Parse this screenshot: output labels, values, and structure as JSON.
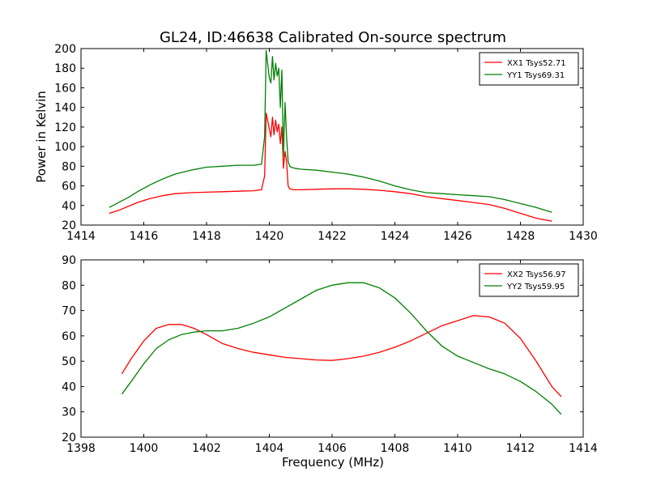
{
  "figure": {
    "title": "GL24, ID:46638 Calibrated On-source spectrum",
    "xlabel": "Frequency (MHz)"
  },
  "colors": {
    "red": "#ff0000",
    "green": "#008000",
    "frame": "#000000",
    "background": "#ffffff"
  },
  "chart_data": [
    {
      "type": "line",
      "title": "GL24, ID:46638 Calibrated On-source spectrum",
      "xlabel": "",
      "ylabel": "Power in Kelvin",
      "xlim": [
        1414,
        1430
      ],
      "ylim": [
        20,
        200
      ],
      "xticks": [
        1414,
        1416,
        1418,
        1420,
        1422,
        1424,
        1426,
        1428,
        1430
      ],
      "yticks": [
        20,
        40,
        60,
        80,
        100,
        120,
        140,
        160,
        180,
        200
      ],
      "grid": false,
      "legend_position": "top-right",
      "series": [
        {
          "name": "XX1 Tsys52.71",
          "color": "#ff0000",
          "x": [
            1414.9,
            1415.2,
            1415.5,
            1415.8,
            1416.2,
            1416.6,
            1417.0,
            1417.5,
            1418.0,
            1418.5,
            1419.0,
            1419.5,
            1419.75,
            1419.85,
            1419.9,
            1420.0,
            1420.05,
            1420.1,
            1420.15,
            1420.2,
            1420.25,
            1420.3,
            1420.35,
            1420.4,
            1420.45,
            1420.5,
            1420.55,
            1420.6,
            1420.65,
            1420.7,
            1420.8,
            1421.0,
            1421.5,
            1422.0,
            1422.5,
            1423.0,
            1423.5,
            1424.0,
            1424.5,
            1425.0,
            1425.5,
            1426.0,
            1426.5,
            1427.0,
            1427.5,
            1428.0,
            1428.5,
            1429.0
          ],
          "y": [
            32,
            35,
            39,
            43,
            47,
            50,
            52,
            53,
            53.5,
            54,
            54.5,
            55,
            56,
            70,
            134,
            118,
            110,
            130,
            112,
            127,
            115,
            123,
            103,
            120,
            78,
            95,
            85,
            60,
            57,
            56.5,
            56,
            56,
            56.5,
            57,
            57,
            56.5,
            55.5,
            54,
            52,
            49,
            47,
            45,
            43,
            41,
            37,
            32,
            27,
            24
          ]
        },
        {
          "name": "YY1 Tsys69.31",
          "color": "#008000",
          "x": [
            1414.9,
            1415.2,
            1415.5,
            1415.8,
            1416.2,
            1416.6,
            1417.0,
            1417.5,
            1418.0,
            1418.5,
            1419.0,
            1419.5,
            1419.75,
            1419.85,
            1419.9,
            1420.0,
            1420.05,
            1420.1,
            1420.15,
            1420.2,
            1420.25,
            1420.3,
            1420.35,
            1420.4,
            1420.45,
            1420.5,
            1420.55,
            1420.6,
            1420.65,
            1420.7,
            1420.8,
            1421.0,
            1421.5,
            1422.0,
            1422.5,
            1423.0,
            1423.5,
            1424.0,
            1424.5,
            1425.0,
            1425.5,
            1426.0,
            1426.5,
            1427.0,
            1427.5,
            1428.0,
            1428.5,
            1429.0
          ],
          "y": [
            38,
            43,
            48,
            54,
            61,
            67,
            72,
            76,
            79,
            80,
            81,
            81,
            82,
            110,
            198,
            170,
            165,
            192,
            168,
            185,
            172,
            180,
            140,
            178,
            90,
            145,
            110,
            85,
            80,
            79,
            78,
            77,
            76,
            74,
            72,
            69,
            65,
            60,
            56,
            53,
            52,
            51,
            50,
            49,
            46,
            42,
            38,
            33
          ]
        }
      ]
    },
    {
      "type": "line",
      "title": "",
      "xlabel": "Frequency (MHz)",
      "ylabel": "",
      "xlim": [
        1398,
        1414
      ],
      "ylim": [
        20,
        90
      ],
      "xticks": [
        1398,
        1400,
        1402,
        1404,
        1406,
        1408,
        1410,
        1412,
        1414
      ],
      "yticks": [
        20,
        30,
        40,
        50,
        60,
        70,
        80,
        90
      ],
      "grid": false,
      "legend_position": "top-right",
      "series": [
        {
          "name": "XX2 Tsys56.97",
          "color": "#ff0000",
          "x": [
            1399.3,
            1399.6,
            1400.0,
            1400.4,
            1400.8,
            1401.2,
            1401.6,
            1402.0,
            1402.5,
            1403.0,
            1403.5,
            1404.0,
            1404.5,
            1405.0,
            1405.5,
            1406.0,
            1406.5,
            1407.0,
            1407.5,
            1408.0,
            1408.5,
            1409.0,
            1409.5,
            1410.0,
            1410.5,
            1411.0,
            1411.5,
            1412.0,
            1412.5,
            1413.0,
            1413.3
          ],
          "y": [
            45,
            51,
            58,
            63,
            64.5,
            64.5,
            63,
            60.5,
            57,
            55,
            53.5,
            52.5,
            51.5,
            51,
            50.5,
            50.3,
            51,
            52,
            53.5,
            55.5,
            58,
            61,
            64,
            66,
            68,
            67.5,
            65,
            59,
            50,
            40,
            36
          ]
        },
        {
          "name": "YY2 Tsys59.95",
          "color": "#008000",
          "x": [
            1399.3,
            1399.6,
            1400.0,
            1400.4,
            1400.8,
            1401.2,
            1401.6,
            1402.0,
            1402.5,
            1403.0,
            1403.5,
            1404.0,
            1404.5,
            1405.0,
            1405.5,
            1406.0,
            1406.5,
            1407.0,
            1407.5,
            1408.0,
            1408.5,
            1409.0,
            1409.5,
            1410.0,
            1410.5,
            1411.0,
            1411.5,
            1412.0,
            1412.5,
            1413.0,
            1413.3
          ],
          "y": [
            37,
            42,
            49,
            55,
            58.5,
            60.5,
            61.5,
            62,
            62,
            63,
            65,
            67.5,
            71,
            74.5,
            78,
            80,
            81,
            81,
            79,
            75,
            69,
            62,
            56,
            52,
            49.5,
            47,
            45,
            42,
            38,
            33,
            29
          ]
        }
      ]
    }
  ]
}
